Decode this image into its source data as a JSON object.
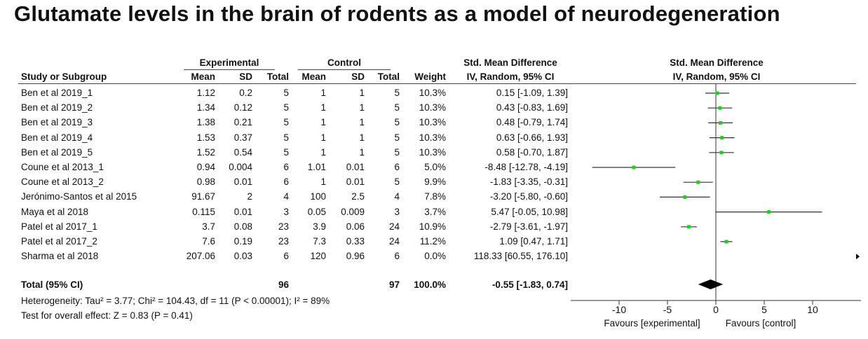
{
  "title": "Glutamate levels in the brain of rodents as a model of neurodegeneration",
  "headers": {
    "experimental": "Experimental",
    "control": "Control",
    "smd": "Std. Mean Difference",
    "study": "Study or Subgroup",
    "mean": "Mean",
    "sd": "SD",
    "total": "Total",
    "weight": "Weight",
    "method": "IV, Random, 95% CI",
    "plot_title": "Std. Mean Difference",
    "plot_method": "IV, Random, 95% CI"
  },
  "studies": [
    {
      "name": "Ben et al 2019_1",
      "e_mean": "1.12",
      "e_sd": "0.2",
      "e_total": "5",
      "c_mean": "1",
      "c_sd": "1",
      "c_total": "5",
      "weight": "10.3%",
      "ci": "0.15 [-1.09, 1.39]"
    },
    {
      "name": "Ben et al 2019_2",
      "e_mean": "1.34",
      "e_sd": "0.12",
      "e_total": "5",
      "c_mean": "1",
      "c_sd": "1",
      "c_total": "5",
      "weight": "10.3%",
      "ci": "0.43 [-0.83, 1.69]"
    },
    {
      "name": "Ben et al 2019_3",
      "e_mean": "1.38",
      "e_sd": "0.21",
      "e_total": "5",
      "c_mean": "1",
      "c_sd": "1",
      "c_total": "5",
      "weight": "10.3%",
      "ci": "0.48 [-0.79, 1.74]"
    },
    {
      "name": "Ben et al 2019_4",
      "e_mean": "1.53",
      "e_sd": "0.37",
      "e_total": "5",
      "c_mean": "1",
      "c_sd": "1",
      "c_total": "5",
      "weight": "10.3%",
      "ci": "0.63 [-0.66, 1.93]"
    },
    {
      "name": "Ben et al 2019_5",
      "e_mean": "1.52",
      "e_sd": "0.54",
      "e_total": "5",
      "c_mean": "1",
      "c_sd": "1",
      "c_total": "5",
      "weight": "10.3%",
      "ci": "0.58 [-0.70, 1.87]"
    },
    {
      "name": "Coune et al 2013_1",
      "e_mean": "0.94",
      "e_sd": "0.004",
      "e_total": "6",
      "c_mean": "1.01",
      "c_sd": "0.01",
      "c_total": "6",
      "weight": "5.0%",
      "ci": "-8.48 [-12.78, -4.19]"
    },
    {
      "name": "Coune et al 2013_2",
      "e_mean": "0.98",
      "e_sd": "0.01",
      "e_total": "6",
      "c_mean": "1",
      "c_sd": "0.01",
      "c_total": "5",
      "weight": "9.9%",
      "ci": "-1.83 [-3.35, -0.31]"
    },
    {
      "name": "Jerónimo-Santos et al 2015",
      "e_mean": "91.67",
      "e_sd": "2",
      "e_total": "4",
      "c_mean": "100",
      "c_sd": "2.5",
      "c_total": "4",
      "weight": "7.8%",
      "ci": "-3.20 [-5.80, -0.60]"
    },
    {
      "name": "Maya et al 2018",
      "e_mean": "0.115",
      "e_sd": "0.01",
      "e_total": "3",
      "c_mean": "0.05",
      "c_sd": "0.009",
      "c_total": "3",
      "weight": "3.7%",
      "ci": "5.47 [-0.05, 10.98]"
    },
    {
      "name": "Patel et al 2017_1",
      "e_mean": "3.7",
      "e_sd": "0.08",
      "e_total": "23",
      "c_mean": "3.9",
      "c_sd": "0.06",
      "c_total": "24",
      "weight": "10.9%",
      "ci": "-2.79 [-3.61, -1.97]"
    },
    {
      "name": "Patel et al 2017_2",
      "e_mean": "7.6",
      "e_sd": "0.19",
      "e_total": "23",
      "c_mean": "7.3",
      "c_sd": "0.33",
      "c_total": "24",
      "weight": "11.2%",
      "ci": "1.09 [0.47, 1.71]"
    },
    {
      "name": "Sharma et al 2018",
      "e_mean": "207.06",
      "e_sd": "0.03",
      "e_total": "6",
      "c_mean": "120",
      "c_sd": "0.96",
      "c_total": "6",
      "weight": "0.0%",
      "ci": "118.33 [60.55, 176.10]"
    }
  ],
  "total": {
    "label": "Total (95% CI)",
    "e_total": "96",
    "c_total": "97",
    "weight": "100.0%",
    "ci": "-0.55 [-1.83, 0.74]"
  },
  "heterogeneity": "Heterogeneity: Tau² = 3.77; Chi² = 104.43, df = 11 (P < 0.00001); I² = 89%",
  "overall_effect": "Test for overall effect: Z = 0.83 (P = 0.41)",
  "axis": {
    "favours_left": "Favours [experimental]",
    "favours_right": "Favours [control]"
  },
  "chart_data": {
    "type": "forest",
    "title": "Std. Mean Difference",
    "subtitle": "IV, Random, 95% CI",
    "xlim": [
      -15,
      15
    ],
    "xticks": [
      -10,
      -5,
      0,
      5,
      10
    ],
    "xtick_labels": [
      "-10",
      "-5",
      "0",
      "5",
      "10"
    ],
    "points": [
      {
        "study": "Ben et al 2019_1",
        "est": 0.15,
        "lo": -1.09,
        "hi": 1.39
      },
      {
        "study": "Ben et al 2019_2",
        "est": 0.43,
        "lo": -0.83,
        "hi": 1.69
      },
      {
        "study": "Ben et al 2019_3",
        "est": 0.48,
        "lo": -0.79,
        "hi": 1.74
      },
      {
        "study": "Ben et al 2019_4",
        "est": 0.63,
        "lo": -0.66,
        "hi": 1.93
      },
      {
        "study": "Ben et al 2019_5",
        "est": 0.58,
        "lo": -0.7,
        "hi": 1.87
      },
      {
        "study": "Coune et al 2013_1",
        "est": -8.48,
        "lo": -12.78,
        "hi": -4.19
      },
      {
        "study": "Coune et al 2013_2",
        "est": -1.83,
        "lo": -3.35,
        "hi": -0.31
      },
      {
        "study": "Jerónimo-Santos et al 2015",
        "est": -3.2,
        "lo": -5.8,
        "hi": -0.6
      },
      {
        "study": "Maya et al 2018",
        "est": 5.47,
        "lo": -0.05,
        "hi": 10.98
      },
      {
        "study": "Patel et al 2017_1",
        "est": -2.79,
        "lo": -3.61,
        "hi": -1.97
      },
      {
        "study": "Patel et al 2017_2",
        "est": 1.09,
        "lo": 0.47,
        "hi": 1.71
      },
      {
        "study": "Sharma et al 2018",
        "est": 118.33,
        "lo": 60.55,
        "hi": 176.1
      }
    ],
    "summary": {
      "est": -0.55,
      "lo": -1.83,
      "hi": 0.74
    },
    "marker_color": "#22cc22",
    "line_color": "#333333",
    "diamond_color": "#000000"
  }
}
